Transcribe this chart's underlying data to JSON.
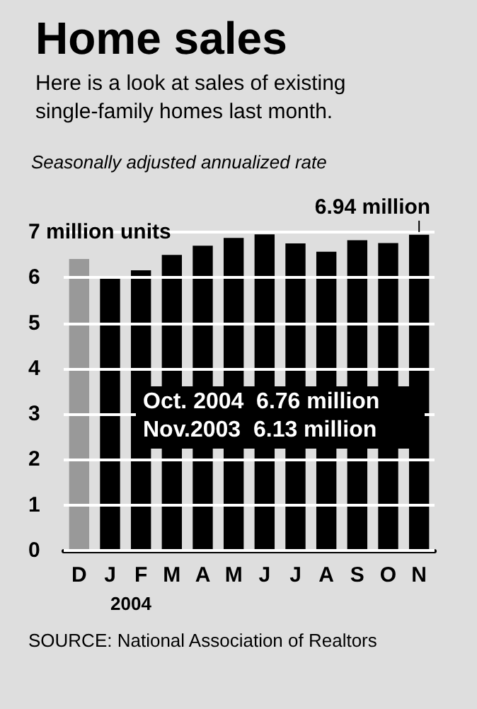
{
  "chart_data": {
    "type": "bar",
    "title": "Home sales",
    "subtitle": "Here is a look at sales of existing\nsingle-family homes last month.",
    "categories": [
      "D",
      "J",
      "F",
      "M",
      "A",
      "M",
      "J",
      "J",
      "A",
      "S",
      "O",
      "N"
    ],
    "values": [
      6.41,
      5.98,
      6.16,
      6.5,
      6.7,
      6.87,
      6.95,
      6.75,
      6.57,
      6.82,
      6.76,
      6.94
    ],
    "colors": [
      "#999999",
      "#000000",
      "#000000",
      "#000000",
      "#000000",
      "#000000",
      "#000000",
      "#000000",
      "#000000",
      "#000000",
      "#000000",
      "#000000"
    ],
    "ylim": [
      0,
      7
    ],
    "yticks": [
      0,
      1,
      2,
      3,
      4,
      5,
      6,
      {
        "value": 7,
        "label": "7 million units"
      }
    ],
    "grid": "y",
    "annotations": [
      "Seasonally adjusted annualized rate",
      "Oct. 2004  6.76 million",
      "Nov.2003  6.13 million",
      "2004",
      "SOURCE: National Association of Realtors",
      {
        "text": "6.94 million",
        "x": "N",
        "y": 6.94
      }
    ]
  }
}
